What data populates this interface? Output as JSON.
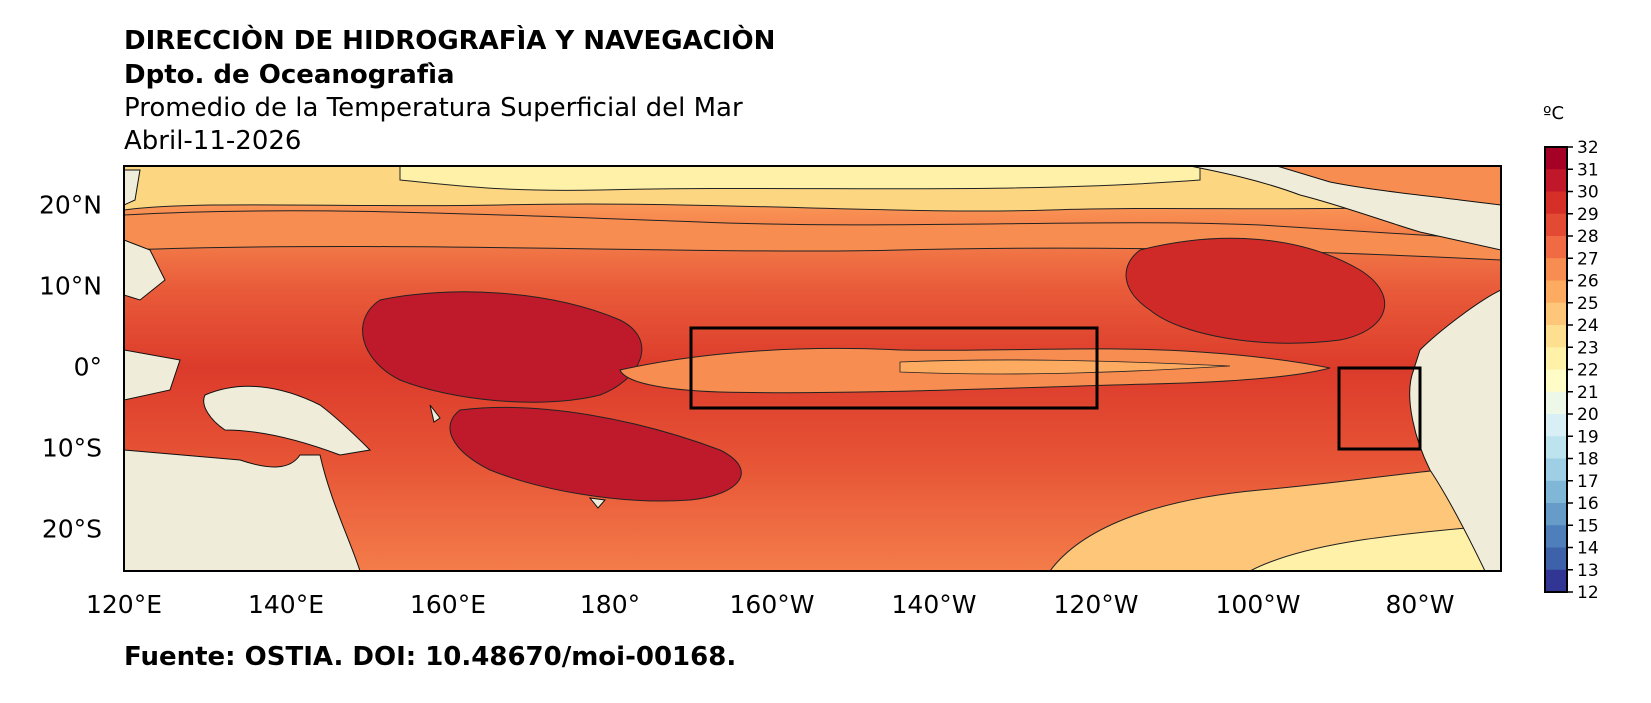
{
  "header": {
    "institution": "DIRECCIÒN DE HIDROGRAFÌA Y NAVEGACIÒN",
    "department": "Dpto. de Oceanografìa",
    "product": "Promedio de la Temperatura Superficial del Mar",
    "date": "Abril-11-2026"
  },
  "footer": {
    "source": "Fuente: OSTIA. DOI: 10.48670/moi-00168."
  },
  "map": {
    "lat_labels": [
      "20°N",
      "10°N",
      "0°",
      "10°S",
      "20°S"
    ],
    "lon_labels": [
      "120°E",
      "140°E",
      "160°E",
      "180°",
      "160°W",
      "140°W",
      "120°W",
      "100°W",
      "80°W"
    ],
    "land_color": "#efedda",
    "boxes": [
      "Niño 3.4 region (170°W–120°W, 5°N–5°S)",
      "Niño 1+2 region (90°W–80°W, 0°–10°S)"
    ]
  },
  "colorbar": {
    "unit": "ºC",
    "ticks": [
      "32",
      "31",
      "30",
      "29",
      "28",
      "27",
      "26",
      "25",
      "24",
      "23",
      "22",
      "21",
      "20",
      "19",
      "18",
      "17",
      "16",
      "15",
      "14",
      "13",
      "12"
    ],
    "colors": [
      "#a50026",
      "#c1172a",
      "#d62f27",
      "#e34a33",
      "#f06a43",
      "#f88d51",
      "#fcab60",
      "#fdc678",
      "#fedf8f",
      "#fff1a8",
      "#fffcc8",
      "#eef8e8",
      "#d9eff6",
      "#bde3ef",
      "#9fcfe4",
      "#81b7d6",
      "#679cc9",
      "#4f7fba",
      "#3d62aa",
      "#313695"
    ]
  }
}
